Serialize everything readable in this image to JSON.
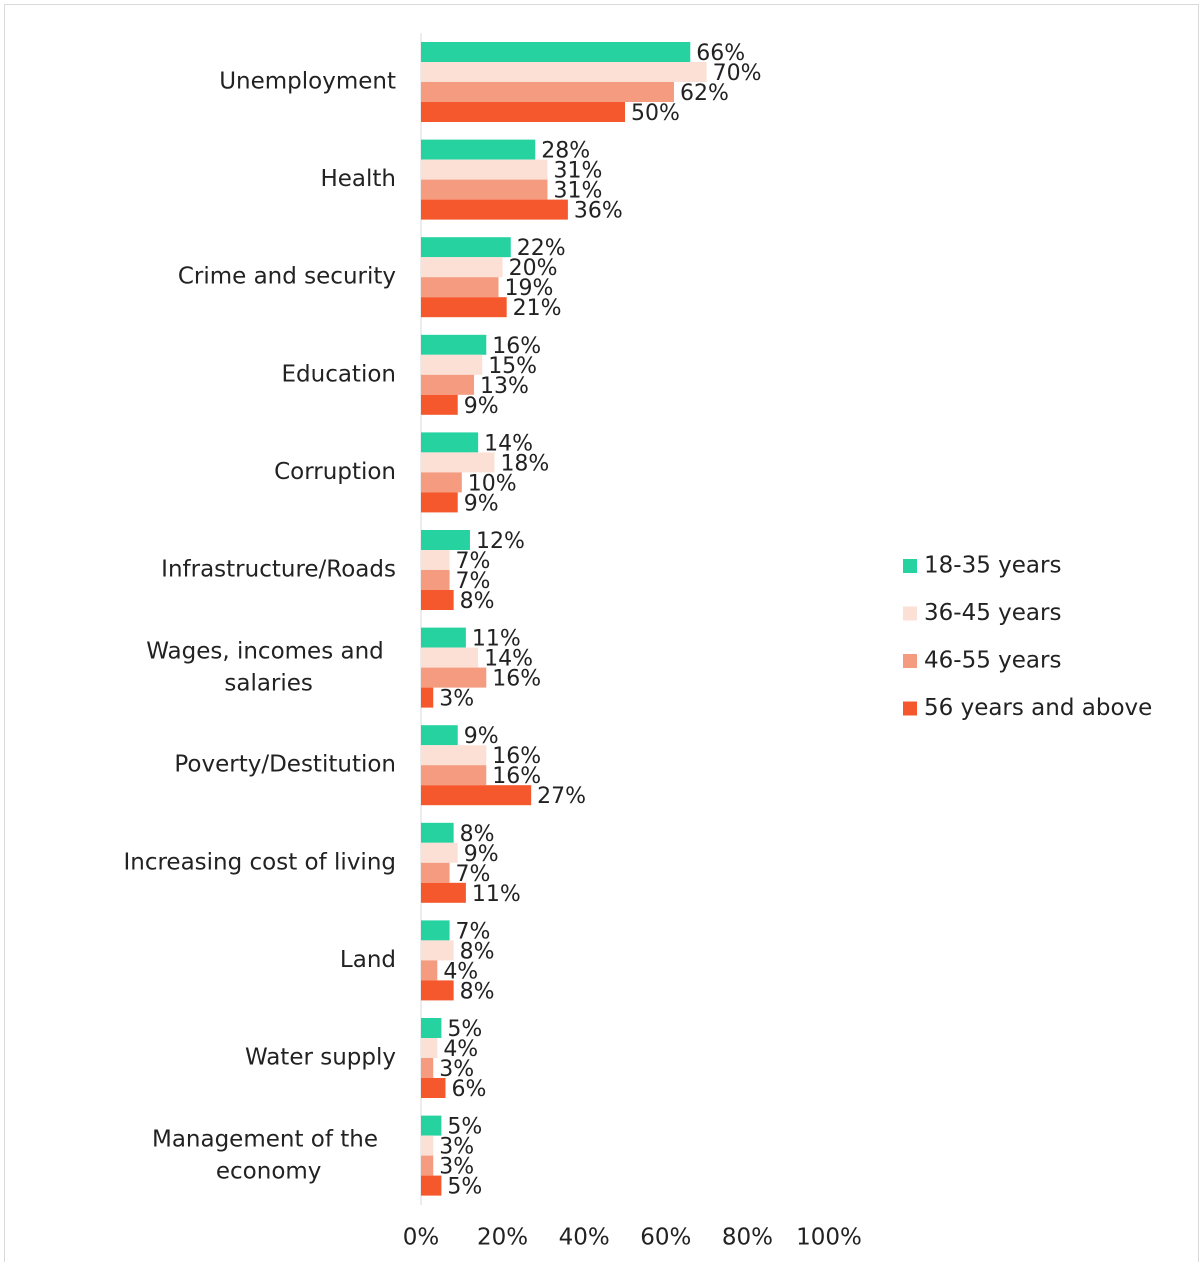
{
  "chart_data": {
    "type": "bar",
    "orientation": "horizontal",
    "categories": [
      "Unemployment",
      "Health",
      "Crime and security",
      "Education",
      "Corruption",
      "Infrastructure/Roads",
      "Wages, incomes and salaries",
      "Poverty/Destitution",
      "Increasing cost of living",
      "Land",
      "Water supply",
      "Management of the economy"
    ],
    "series": [
      {
        "name": "18-35 years",
        "color": "#26d3a0",
        "values": [
          66,
          28,
          22,
          16,
          14,
          12,
          11,
          9,
          8,
          7,
          5,
          5
        ],
        "value_labels": [
          "66%",
          "28%",
          "22%",
          "16%",
          "14%",
          "12%",
          "11%",
          "9%",
          "8%",
          "7%",
          "5%",
          "5%"
        ]
      },
      {
        "name": "36-45 years",
        "color": "#fde0d5",
        "values": [
          70,
          31,
          20,
          15,
          18,
          7,
          14,
          16,
          9,
          8,
          4,
          3
        ],
        "value_labels": [
          "70%",
          "31%",
          "20%",
          "15%",
          "18%",
          "7%",
          "14%",
          "16%",
          "9%",
          "8%",
          "4%",
          "3%"
        ]
      },
      {
        "name": "46-55 years",
        "color": "#f59b7f",
        "values": [
          62,
          31,
          19,
          13,
          10,
          7,
          16,
          16,
          7,
          4,
          3,
          3
        ],
        "value_labels": [
          "62%",
          "31%",
          "19%",
          "13%",
          "10%",
          "7%",
          "16%",
          "16%",
          "7%",
          "4%",
          "3%",
          "3%"
        ]
      },
      {
        "name": "56 years and above",
        "color": "#f4582c",
        "values": [
          50,
          36,
          21,
          9,
          9,
          8,
          3,
          27,
          11,
          8,
          6,
          5
        ],
        "value_labels": [
          "50%",
          "36%",
          "21%",
          "9%",
          "9%",
          "8%",
          "3%",
          "27%",
          "11%",
          "8%",
          "6%",
          "5%"
        ]
      }
    ],
    "xlim": [
      0,
      100
    ],
    "xticks": [
      {
        "value": 0,
        "label": "0%"
      },
      {
        "value": 20,
        "label": "20%"
      },
      {
        "value": 40,
        "label": "40%"
      },
      {
        "value": 60,
        "label": "60%"
      },
      {
        "value": 80,
        "label": "80%"
      },
      {
        "value": 100,
        "label": "100%"
      }
    ],
    "legend": "right",
    "grid": false
  }
}
